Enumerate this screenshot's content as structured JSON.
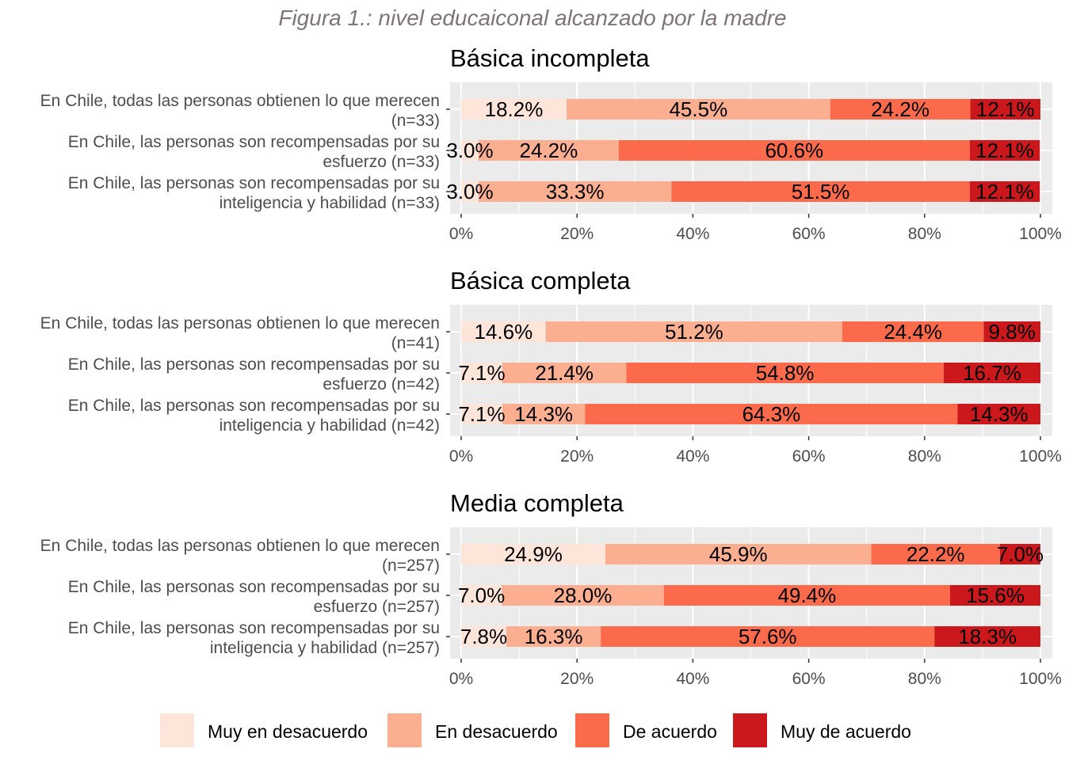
{
  "title": "Figura 1.: nivel educaiconal alcanzado por la madre",
  "colors": {
    "muy_en_desacuerdo": "#fee5d9",
    "en_desacuerdo": "#fcae91",
    "de_acuerdo": "#fb6a4a",
    "muy_de_acuerdo": "#cb181d",
    "panel_background": "#ebebeb",
    "gridline": "#ffffff",
    "title_color": "#7f7575",
    "axis_text": "#4d4d4d"
  },
  "legend": {
    "position": "bottom",
    "items": [
      {
        "label": "Muy en desacuerdo",
        "color": "#fee5d9"
      },
      {
        "label": "En desacuerdo",
        "color": "#fcae91"
      },
      {
        "label": "De acuerdo",
        "color": "#fb6a4a"
      },
      {
        "label": "Muy de acuerdo",
        "color": "#cb181d"
      }
    ]
  },
  "chart_data": [
    {
      "type": "bar",
      "orientation": "horizontal",
      "stacked": true,
      "title": "Básica incompleta",
      "xlim": [
        0,
        100
      ],
      "xticks": [
        "0%",
        "20%",
        "40%",
        "60%",
        "80%",
        "100%"
      ],
      "categories": [
        [
          "En Chile, todas las personas obtienen lo que merecen",
          "(n=33)"
        ],
        [
          "En Chile, las personas son recompensadas por su",
          "esfuerzo (n=33)"
        ],
        [
          "En Chile, las personas son recompensadas por su",
          "inteligencia y habilidad (n=33)"
        ]
      ],
      "series": [
        {
          "name": "Muy en desacuerdo",
          "values": [
            18.2,
            3.0,
            3.0
          ],
          "labels": [
            "18.2%",
            "3.0%",
            "3.0%"
          ]
        },
        {
          "name": "En desacuerdo",
          "values": [
            45.5,
            24.2,
            33.3
          ],
          "labels": [
            "45.5%",
            "24.2%",
            "33.3%"
          ]
        },
        {
          "name": "De acuerdo",
          "values": [
            24.2,
            60.6,
            51.5
          ],
          "labels": [
            "24.2%",
            "60.6%",
            "51.5%"
          ]
        },
        {
          "name": "Muy de acuerdo",
          "values": [
            12.1,
            12.1,
            12.1
          ],
          "labels": [
            "12.1%",
            "12.1%",
            "12.1%"
          ]
        }
      ]
    },
    {
      "type": "bar",
      "orientation": "horizontal",
      "stacked": true,
      "title": "Básica completa",
      "xlim": [
        0,
        100
      ],
      "xticks": [
        "0%",
        "20%",
        "40%",
        "60%",
        "80%",
        "100%"
      ],
      "categories": [
        [
          "En Chile, todas las personas obtienen lo que merecen",
          "(n=41)"
        ],
        [
          "En Chile, las personas son recompensadas por su",
          "esfuerzo (n=42)"
        ],
        [
          "En Chile, las personas son recompensadas por su",
          "inteligencia y habilidad (n=42)"
        ]
      ],
      "series": [
        {
          "name": "Muy en desacuerdo",
          "values": [
            14.6,
            7.1,
            7.1
          ],
          "labels": [
            "14.6%",
            "7.1%",
            "7.1%"
          ]
        },
        {
          "name": "En desacuerdo",
          "values": [
            51.2,
            21.4,
            14.3
          ],
          "labels": [
            "51.2%",
            "21.4%",
            "14.3%"
          ]
        },
        {
          "name": "De acuerdo",
          "values": [
            24.4,
            54.8,
            64.3
          ],
          "labels": [
            "24.4%",
            "54.8%",
            "64.3%"
          ]
        },
        {
          "name": "Muy de acuerdo",
          "values": [
            9.8,
            16.7,
            14.3
          ],
          "labels": [
            "9.8%",
            "16.7%",
            "14.3%"
          ]
        }
      ]
    },
    {
      "type": "bar",
      "orientation": "horizontal",
      "stacked": true,
      "title": "Media completa",
      "xlim": [
        0,
        100
      ],
      "xticks": [
        "0%",
        "20%",
        "40%",
        "60%",
        "80%",
        "100%"
      ],
      "categories": [
        [
          "En Chile, todas las personas obtienen lo que merecen",
          "(n=257)"
        ],
        [
          "En Chile, las personas son recompensadas por su",
          "esfuerzo (n=257)"
        ],
        [
          "En Chile, las personas son recompensadas por su",
          "inteligencia y habilidad (n=257)"
        ]
      ],
      "series": [
        {
          "name": "Muy en desacuerdo",
          "values": [
            24.9,
            7.0,
            7.8
          ],
          "labels": [
            "24.9%",
            "7.0%",
            "7.8%"
          ]
        },
        {
          "name": "En desacuerdo",
          "values": [
            45.9,
            28.0,
            16.3
          ],
          "labels": [
            "45.9%",
            "28.0%",
            "16.3%"
          ]
        },
        {
          "name": "De acuerdo",
          "values": [
            22.2,
            49.4,
            57.6
          ],
          "labels": [
            "22.2%",
            "49.4%",
            "57.6%"
          ]
        },
        {
          "name": "Muy de acuerdo",
          "values": [
            7.0,
            15.6,
            18.3
          ],
          "labels": [
            "7.0%",
            "15.6%",
            "18.3%"
          ]
        }
      ]
    }
  ]
}
